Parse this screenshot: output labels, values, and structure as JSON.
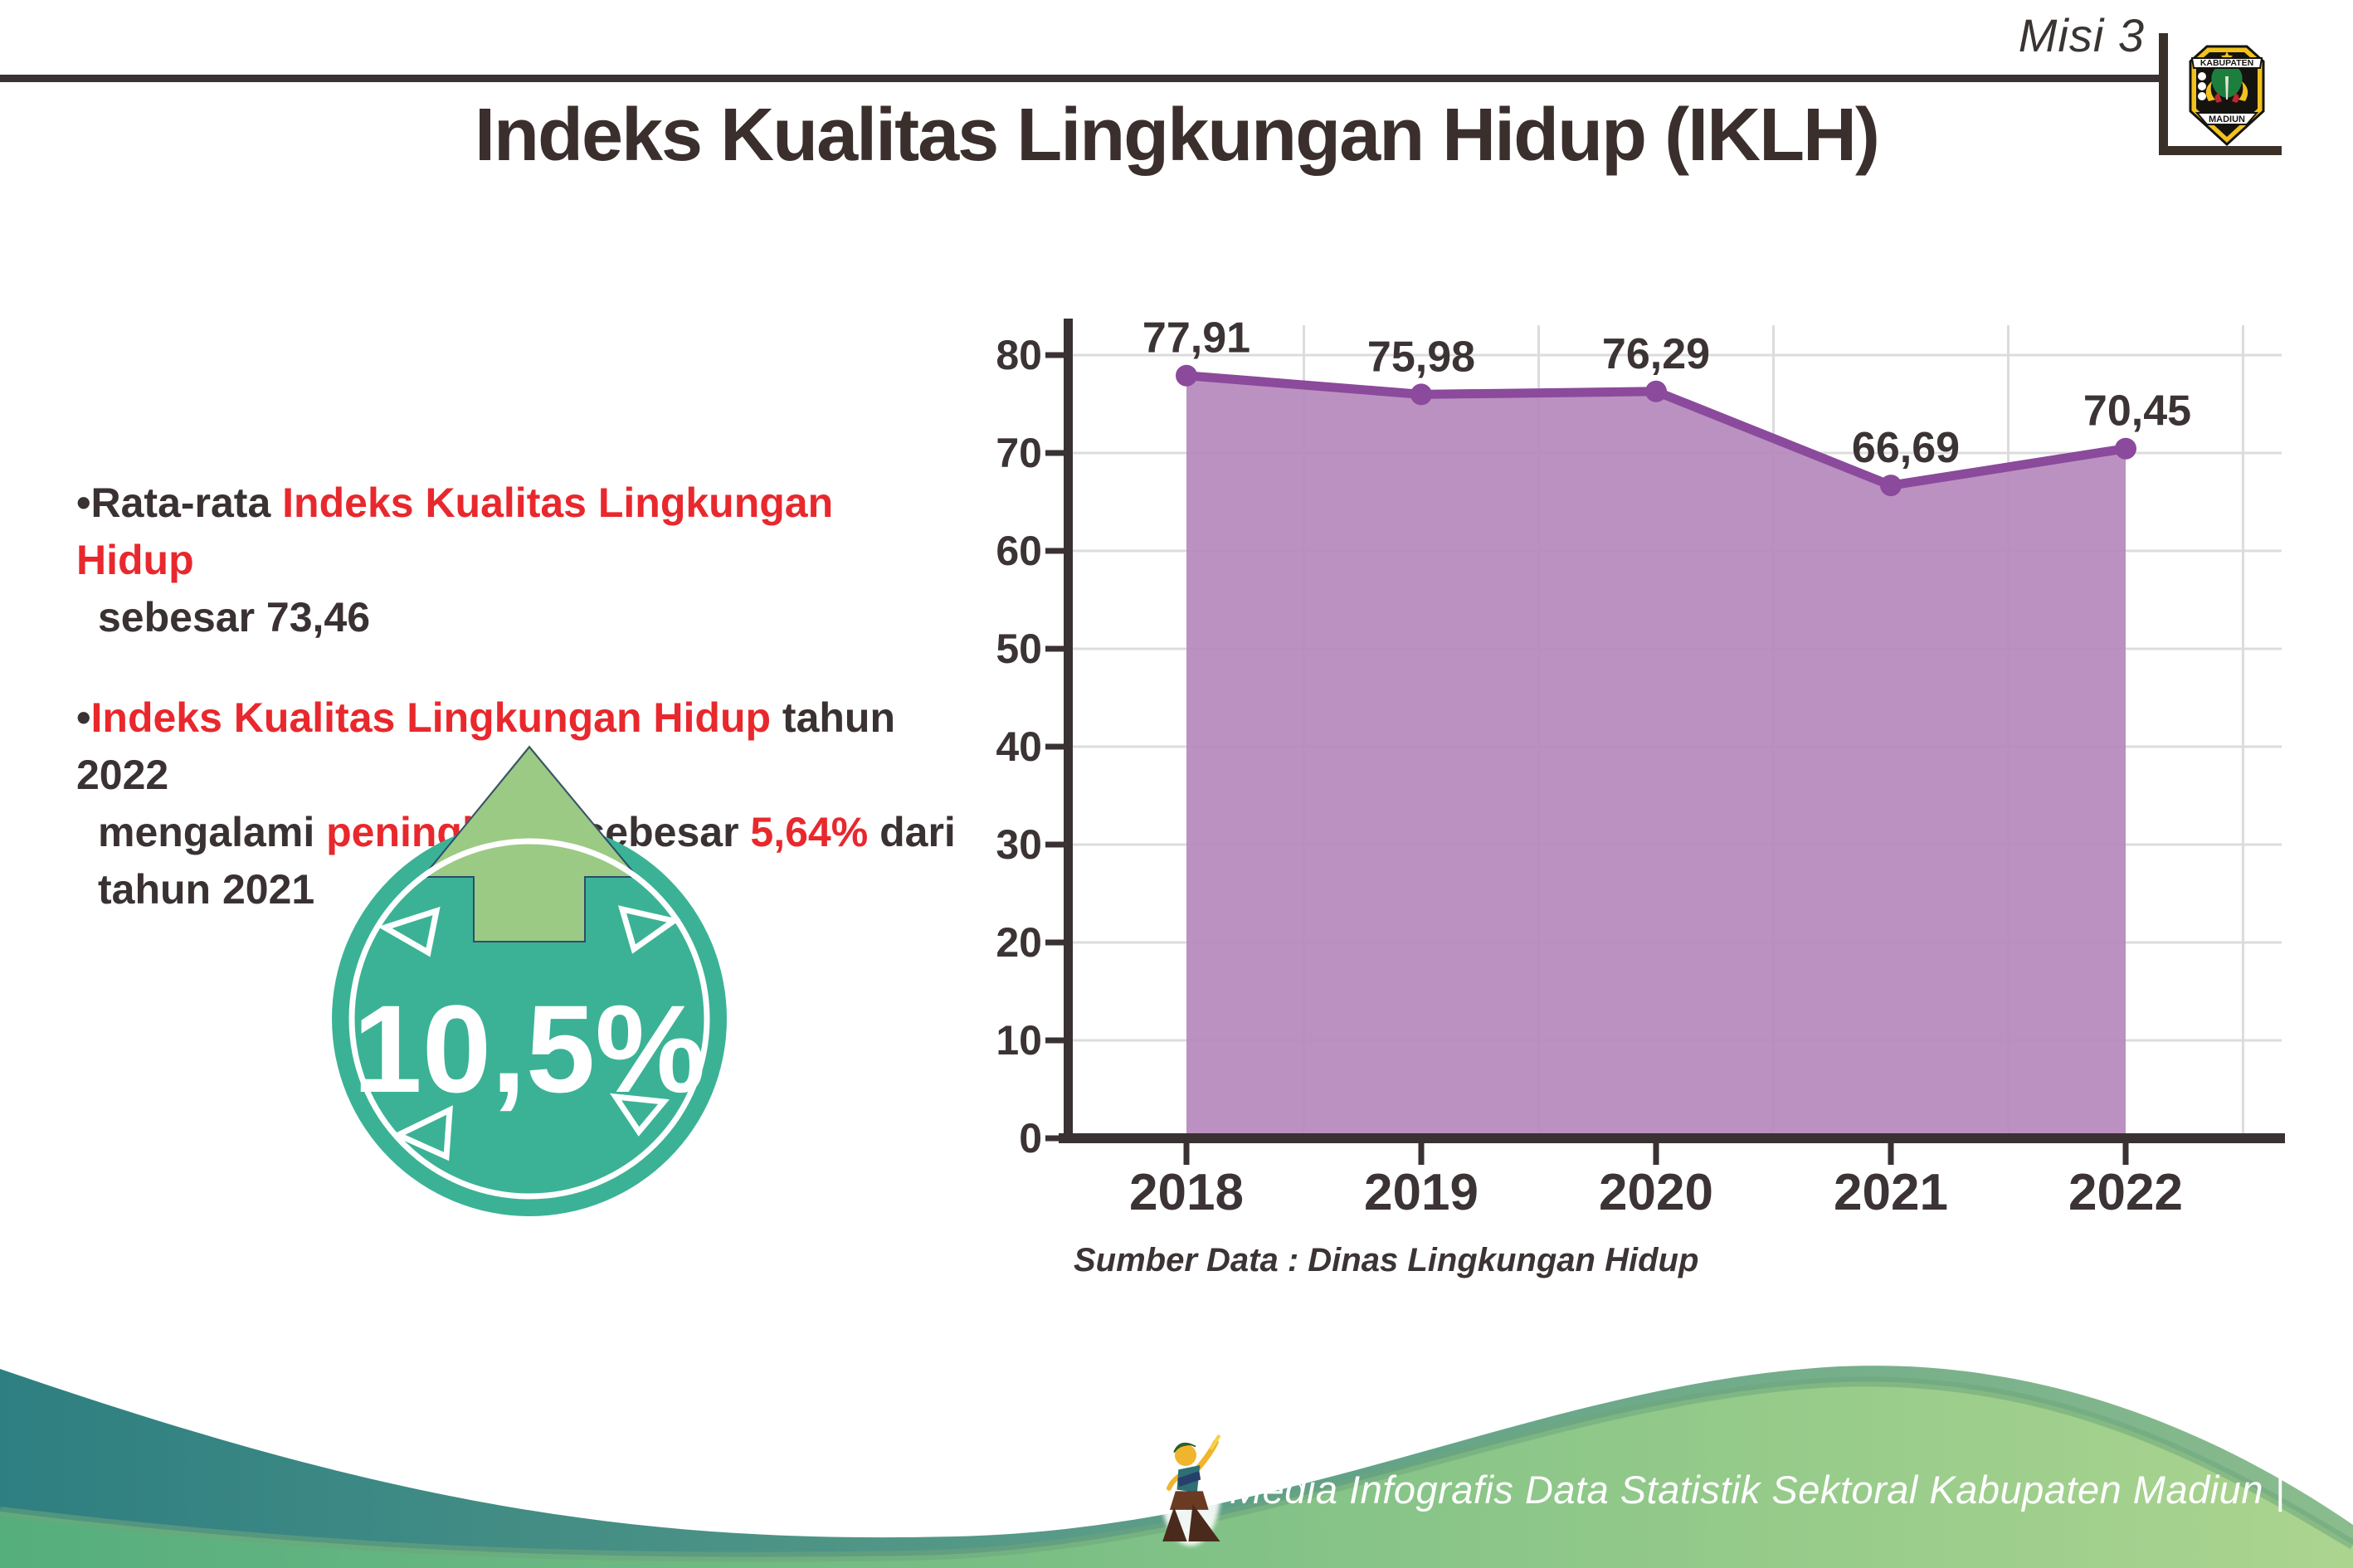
{
  "page": {
    "mission_label": "Misi 3",
    "title": "Indeks Kualitas Lingkungan Hidup (IKLH)"
  },
  "logo": {
    "top_text": "KABUPATEN",
    "bottom_text": "MADIUN"
  },
  "colors": {
    "dark": "#3a3132",
    "red": "#e8282d",
    "title": "#3a2f2c"
  },
  "bullets": [
    {
      "lines": [
        [
          {
            "text": "Rata-rata ",
            "color": "dark"
          },
          {
            "text": "Indeks Kualitas Lingkungan Hidup",
            "color": "red"
          }
        ],
        [
          {
            "text": "sebesar 73,46",
            "color": "dark"
          }
        ]
      ]
    },
    {
      "lines": [
        [
          {
            "text": "Indeks Kualitas Lingkungan Hidup",
            "color": "red"
          },
          {
            "text": " tahun 2022",
            "color": "dark"
          }
        ],
        [
          {
            "text": "mengalami ",
            "color": "dark"
          },
          {
            "text": "peningkatan",
            "color": "red"
          },
          {
            "text": " sebesar ",
            "color": "dark"
          },
          {
            "text": "5,64%",
            "color": "red"
          },
          {
            "text": " dari",
            "color": "dark"
          }
        ],
        [
          {
            "text": "tahun 2021",
            "color": "dark"
          }
        ]
      ]
    }
  ],
  "badge": {
    "value": "10,5%",
    "circle_color": "#3bb295",
    "arrow_color": "#9bca85",
    "arrow_outline": "#2c3a66",
    "icon": "up-arrow-icon"
  },
  "chart_data": {
    "type": "area",
    "title": "",
    "xlabel": "",
    "ylabel": "",
    "categories": [
      "2018",
      "2019",
      "2020",
      "2021",
      "2022"
    ],
    "values": [
      77.91,
      75.98,
      76.29,
      66.69,
      70.45
    ],
    "value_labels": [
      "77,91",
      "75,98",
      "76,29",
      "66,69",
      "70,45"
    ],
    "ylim": [
      0,
      80
    ],
    "ytick_interval": 10,
    "yticks": [
      "0",
      "10",
      "20",
      "30",
      "40",
      "50",
      "60",
      "70",
      "80"
    ],
    "grid": true,
    "legend": false,
    "source_note": "Sumber Data : Dinas Lingkungan Hidup",
    "colors": {
      "area": "#b689bd",
      "line": "#8b4a9b",
      "marker": "#8b4a9b",
      "grid": "#dcdcdc",
      "axis": "#3a3132",
      "label": "#3b3334"
    }
  },
  "footer": {
    "text": "Media Infografis Data Statistik Sektoral Kabupaten Madiun |",
    "mascot_icon": "dancer-mascot-icon",
    "band_colors": [
      "#2e7f82",
      "#8abc8d"
    ],
    "hill_colors": [
      "#55ae7d",
      "#abd48f"
    ],
    "hill_edge_color": "#6da57c"
  }
}
